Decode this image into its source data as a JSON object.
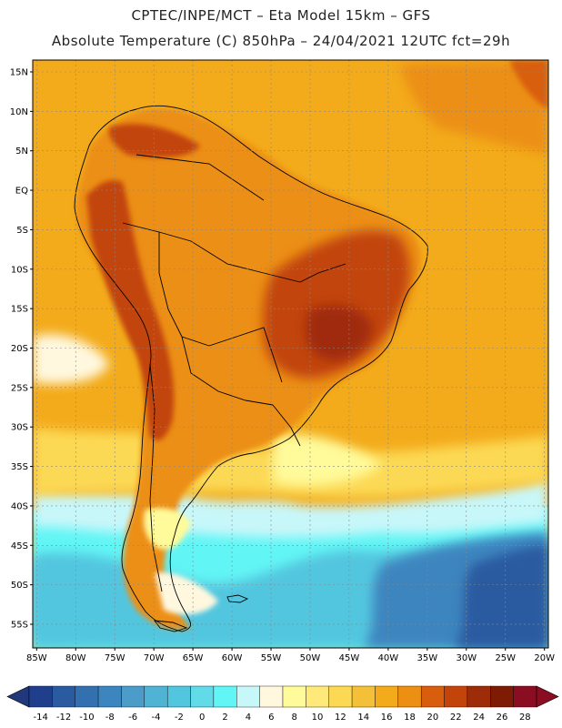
{
  "header": {
    "line1": "CPTEC/INPE/MCT –  Eta Model 15km – GFS",
    "line2": "Absolute Temperature (C) 850hPa – 24/04/2021 12UTC fct=29h"
  },
  "axes": {
    "lat_labels": [
      "15N",
      "10N",
      "5N",
      "EQ",
      "5S",
      "10S",
      "15S",
      "20S",
      "25S",
      "30S",
      "35S",
      "40S",
      "45S",
      "50S",
      "55S"
    ],
    "lat_values": [
      15,
      10,
      5,
      0,
      -5,
      -10,
      -15,
      -20,
      -25,
      -30,
      -35,
      -40,
      -45,
      -50,
      -55
    ],
    "lon_labels": [
      "85W",
      "80W",
      "75W",
      "70W",
      "65W",
      "60W",
      "55W",
      "50W",
      "45W",
      "40W",
      "35W",
      "30W",
      "25W",
      "20W"
    ],
    "lon_values": [
      -85,
      -80,
      -75,
      -70,
      -65,
      -60,
      -55,
      -50,
      -45,
      -40,
      -35,
      -30,
      -25,
      -20
    ],
    "extent": {
      "lon_min": -85.5,
      "lon_max": -19.5,
      "lat_min": -58,
      "lat_max": 16.5
    }
  },
  "colorbar": {
    "labels": [
      "-14",
      "-12",
      "-10",
      "-8",
      "-6",
      "-4",
      "-2",
      "0",
      "2",
      "4",
      "6",
      "8",
      "10",
      "12",
      "14",
      "16",
      "18",
      "20",
      "22",
      "24",
      "26",
      "28"
    ],
    "colors": [
      "#1f3f8c",
      "#2a5aa0",
      "#3270b0",
      "#3d85bf",
      "#4c9cc9",
      "#4fb3d4",
      "#52c6df",
      "#62dbe8",
      "#62f5f5",
      "#c8f7fa",
      "#fff8df",
      "#fffa9a",
      "#ffe97a",
      "#fcd955",
      "#f4c03a",
      "#f3ab1b",
      "#ec8f12",
      "#d85e0d",
      "#c2440a",
      "#9f2c08",
      "#7d1b05",
      "#8b0d21"
    ],
    "under_color": "#21387a",
    "over_color": "#8b0d21"
  },
  "colors": {
    "ocean_tropical": "#f3ab1b",
    "land": "#ec8f12",
    "andes_hot": "#c2440a",
    "cold_south": "#62f5f5",
    "frontier_line": "#000000"
  }
}
